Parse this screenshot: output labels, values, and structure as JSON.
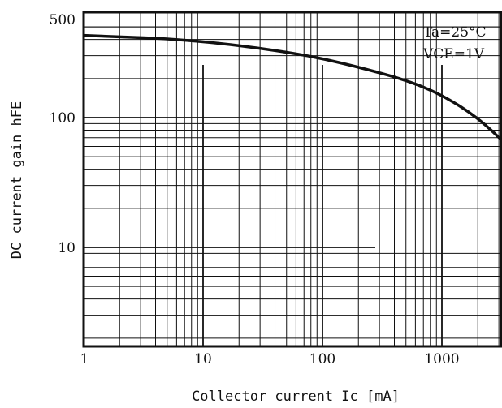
{
  "chart_data": {
    "type": "line",
    "xlabel": "Collector current Ic [mA]",
    "ylabel": "DC current gain hFE",
    "x_scale": "log",
    "y_scale": "log",
    "xlim": [
      1,
      3600
    ],
    "ylim": [
      1,
      500
    ],
    "x_tick_labels": [
      {
        "value": 1,
        "label": "1"
      },
      {
        "value": 10,
        "label": "10"
      },
      {
        "value": 100,
        "label": "100"
      },
      {
        "value": 1000,
        "label": "1000"
      }
    ],
    "y_tick_labels": [
      {
        "value": 10,
        "label": "10"
      },
      {
        "value": 100,
        "label": "100"
      },
      {
        "value": 500,
        "label": "500"
      }
    ],
    "annotations": [
      "Ta=25°C",
      "VCE=1V"
    ],
    "grid": true,
    "series": [
      {
        "x": [
          1,
          2,
          5,
          10,
          20,
          50,
          100,
          200,
          500,
          1000,
          2000,
          3600
        ],
        "y": [
          430,
          420,
          405,
          385,
          360,
          320,
          285,
          245,
          195,
          150,
          100,
          60
        ]
      }
    ]
  }
}
